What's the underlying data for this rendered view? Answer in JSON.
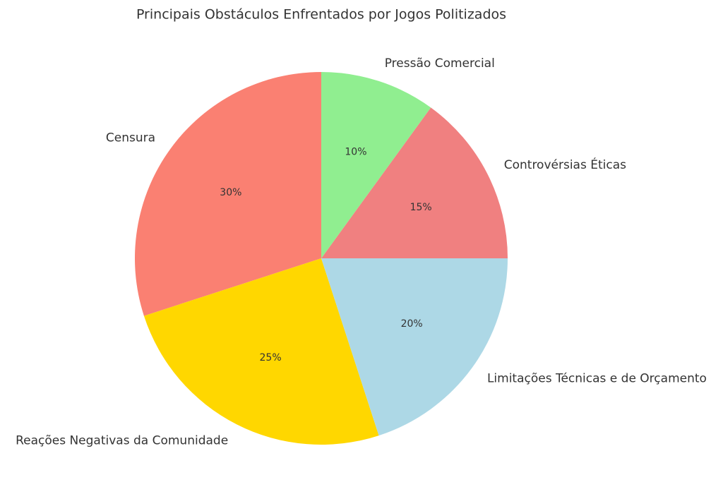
{
  "chart_data": {
    "type": "pie",
    "title": "Principais Obstáculos Enfrentados por Jogos Politizados",
    "categories": [
      "Censura",
      "Reações Negativas da Comunidade",
      "Limitações Técnicas e de Orçamento",
      "Controvérsias Éticas",
      "Pressão Comercial"
    ],
    "values": [
      30,
      25,
      20,
      15,
      10
    ],
    "value_labels": [
      "30%",
      "25%",
      "20%",
      "15%",
      "10%"
    ],
    "colors": [
      "#fa8072",
      "#ffd700",
      "#add8e6",
      "#f08080",
      "#90ee90"
    ]
  }
}
